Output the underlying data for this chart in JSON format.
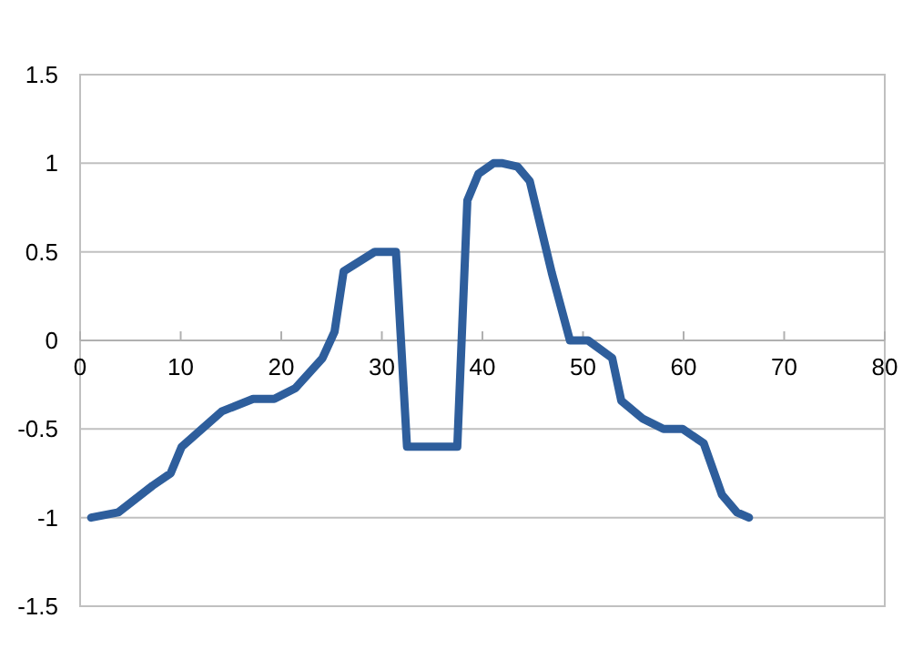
{
  "chart_data": {
    "type": "line",
    "x": [
      1.1,
      3.8,
      7.2,
      9,
      10.1,
      14.1,
      17.2,
      19.3,
      21.4,
      24.1,
      25.3,
      26.2,
      29.3,
      31.4,
      32.5,
      37.5,
      38.5,
      39.6,
      41.1,
      42,
      43.5,
      44.7,
      46.9,
      48.7,
      50.5,
      52.9,
      53.8,
      55.9,
      58,
      59.9,
      62,
      63.8,
      65.3,
      66.5
    ],
    "series": [
      {
        "color": "#2e5e9c",
        "values": [
          -1,
          -0.97,
          -0.82,
          -0.75,
          -0.6,
          -0.4,
          -0.33,
          -0.33,
          -0.27,
          -0.1,
          0.05,
          0.39,
          0.5,
          0.5,
          -0.6,
          -0.6,
          0.79,
          0.94,
          1,
          1,
          0.98,
          0.9,
          0.38,
          0,
          0,
          -0.1,
          -0.34,
          -0.44,
          -0.5,
          -0.5,
          -0.58,
          -0.87,
          -0.97,
          -1
        ]
      }
    ],
    "xlim": [
      0,
      80
    ],
    "xticks": [
      0,
      10,
      20,
      30,
      40,
      50,
      60,
      70,
      80
    ],
    "ylim": [
      -1.5,
      1.5
    ],
    "yticks": [
      -1.5,
      -1,
      -0.5,
      0,
      0.5,
      1,
      1.5
    ],
    "grid": "y",
    "marker": "none",
    "line_style": "solid"
  }
}
